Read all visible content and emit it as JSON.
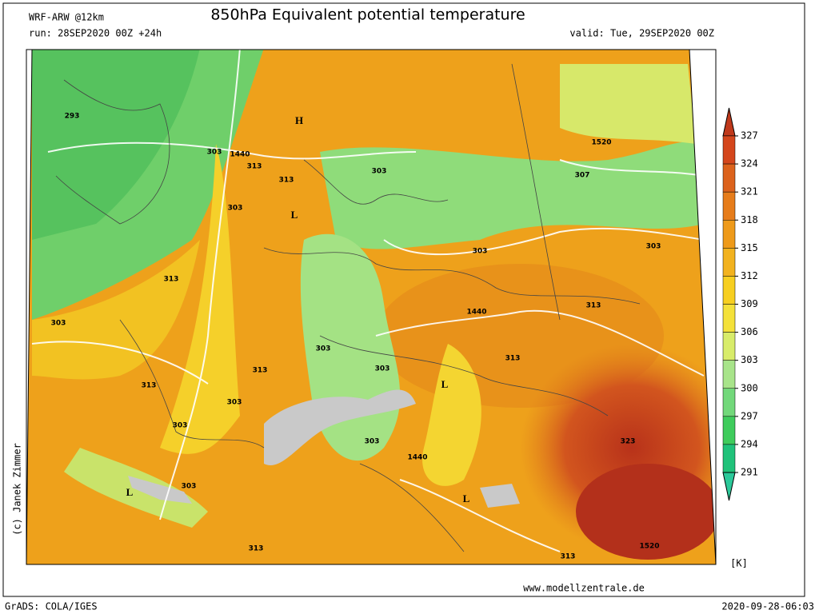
{
  "header": {
    "model": "WRF-ARW @12km",
    "title": "850hPa Equivalent potential temperature",
    "run": "run: 28SEP2020 00Z +24h",
    "valid": "valid: Tue, 29SEP2020 00Z"
  },
  "colorbar": {
    "ticks": [
      327,
      324,
      321,
      318,
      315,
      312,
      309,
      306,
      303,
      300,
      297,
      294,
      291
    ],
    "unit": "[K]"
  },
  "map_labels": [
    "293",
    "303",
    "1440",
    "313",
    "H",
    "313",
    "303",
    "L",
    "303",
    "1520",
    "307",
    "303",
    "303",
    "313",
    "303",
    "1440",
    "313",
    "303",
    "303",
    "313",
    "313",
    "303",
    "L",
    "313",
    "303",
    "303",
    "1440",
    "323",
    "L",
    "303",
    "L",
    "313",
    "313",
    "1520"
  ],
  "footer": {
    "author": "(c) Janek Zimmer",
    "site": "www.modellzentrale.de",
    "software": "GrADS: COLA/IGES",
    "timestamp": "2020-09-28-06:03"
  }
}
